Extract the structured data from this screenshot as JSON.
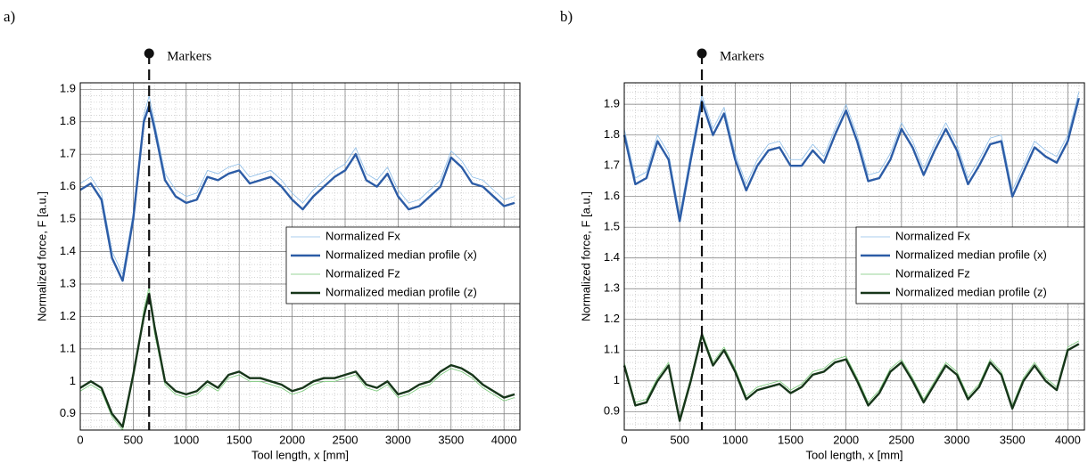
{
  "chart_data": [
    {
      "type": "line",
      "panel_label": "a)",
      "x_label": "Tool length, x [mm]",
      "y_label": "Normalized force, F [a.u.]",
      "marker": {
        "x": 650,
        "label": "Markers"
      },
      "xlim": [
        0,
        4150
      ],
      "ylim": [
        0.85,
        1.92
      ],
      "xticks": [
        0,
        500,
        1000,
        1500,
        2000,
        2500,
        3000,
        3500,
        4000
      ],
      "yticks": [
        0.9,
        1,
        1.1,
        1.2,
        1.3,
        1.4,
        1.5,
        1.6,
        1.7,
        1.8,
        1.9
      ],
      "grid": true,
      "legend": "center right",
      "x": [
        0,
        100,
        200,
        300,
        400,
        500,
        600,
        650,
        700,
        800,
        900,
        1000,
        1100,
        1200,
        1300,
        1400,
        1500,
        1600,
        1700,
        1800,
        1900,
        2000,
        2100,
        2200,
        2300,
        2400,
        2500,
        2600,
        2700,
        2800,
        2900,
        3000,
        3100,
        3200,
        3300,
        3400,
        3500,
        3600,
        3700,
        3800,
        3900,
        4000,
        4100
      ],
      "series": [
        {
          "name": "Normalized Fx",
          "color": "#8cbde8",
          "values": [
            1.61,
            1.63,
            1.58,
            1.4,
            1.33,
            1.52,
            1.82,
            1.88,
            1.8,
            1.64,
            1.59,
            1.57,
            1.58,
            1.65,
            1.64,
            1.66,
            1.67,
            1.63,
            1.64,
            1.65,
            1.62,
            1.58,
            1.55,
            1.59,
            1.62,
            1.65,
            1.67,
            1.72,
            1.64,
            1.62,
            1.66,
            1.59,
            1.55,
            1.56,
            1.59,
            1.62,
            1.71,
            1.68,
            1.63,
            1.62,
            1.59,
            1.56,
            1.57
          ]
        },
        {
          "name": "Normalized median profile (x)",
          "color": "#2c5ca6",
          "values": [
            1.59,
            1.61,
            1.56,
            1.38,
            1.31,
            1.5,
            1.8,
            1.85,
            1.78,
            1.62,
            1.57,
            1.55,
            1.56,
            1.63,
            1.62,
            1.64,
            1.65,
            1.61,
            1.62,
            1.63,
            1.6,
            1.56,
            1.53,
            1.57,
            1.6,
            1.63,
            1.65,
            1.7,
            1.62,
            1.6,
            1.64,
            1.57,
            1.53,
            1.54,
            1.57,
            1.6,
            1.69,
            1.66,
            1.61,
            1.6,
            1.57,
            1.54,
            1.55
          ]
        },
        {
          "name": "Normalized Fz",
          "color": "#77c977",
          "values": [
            0.97,
            0.99,
            0.97,
            0.89,
            0.85,
            1.01,
            1.22,
            1.29,
            1.15,
            0.99,
            0.96,
            0.95,
            0.96,
            0.99,
            0.97,
            1.01,
            1.02,
            1.0,
            1.0,
            0.99,
            0.98,
            0.96,
            0.97,
            0.99,
            1.0,
            1.0,
            1.01,
            1.02,
            0.98,
            0.97,
            0.99,
            0.95,
            0.96,
            0.98,
            0.99,
            1.02,
            1.04,
            1.03,
            1.01,
            0.98,
            0.96,
            0.94,
            0.95
          ]
        },
        {
          "name": "Normalized median profile (z)",
          "color": "#17361a",
          "values": [
            0.98,
            1.0,
            0.98,
            0.9,
            0.86,
            1.02,
            1.2,
            1.27,
            1.17,
            1.0,
            0.97,
            0.96,
            0.97,
            1.0,
            0.98,
            1.02,
            1.03,
            1.01,
            1.01,
            1.0,
            0.99,
            0.97,
            0.98,
            1.0,
            1.01,
            1.01,
            1.02,
            1.03,
            0.99,
            0.98,
            1.0,
            0.96,
            0.97,
            0.99,
            1.0,
            1.03,
            1.05,
            1.04,
            1.02,
            0.99,
            0.97,
            0.95,
            0.96
          ]
        }
      ]
    },
    {
      "type": "line",
      "panel_label": "b)",
      "x_label": "Tool length, x [mm]",
      "y_label": "Normalized force, F [a.u.]",
      "marker": {
        "x": 700,
        "label": "Markers"
      },
      "xlim": [
        0,
        4150
      ],
      "ylim": [
        0.84,
        1.97
      ],
      "xticks": [
        0,
        500,
        1000,
        1500,
        2000,
        2500,
        3000,
        3500,
        4000
      ],
      "yticks": [
        0.9,
        1,
        1.1,
        1.2,
        1.3,
        1.4,
        1.5,
        1.6,
        1.7,
        1.8,
        1.9
      ],
      "grid": true,
      "legend": "center right",
      "x": [
        0,
        100,
        200,
        300,
        400,
        500,
        600,
        700,
        800,
        900,
        1000,
        1100,
        1200,
        1300,
        1400,
        1500,
        1600,
        1700,
        1800,
        1900,
        2000,
        2100,
        2200,
        2300,
        2400,
        2500,
        2600,
        2700,
        2800,
        2900,
        3000,
        3100,
        3200,
        3300,
        3400,
        3500,
        3600,
        3700,
        3800,
        3900,
        4000,
        4100
      ],
      "series": [
        {
          "name": "Normalized Fx",
          "color": "#8cbde8",
          "values": [
            1.82,
            1.66,
            1.68,
            1.8,
            1.74,
            1.54,
            1.74,
            1.93,
            1.82,
            1.89,
            1.74,
            1.64,
            1.72,
            1.77,
            1.78,
            1.72,
            1.72,
            1.77,
            1.73,
            1.82,
            1.9,
            1.8,
            1.67,
            1.68,
            1.74,
            1.84,
            1.78,
            1.69,
            1.77,
            1.84,
            1.77,
            1.66,
            1.72,
            1.79,
            1.8,
            1.62,
            1.7,
            1.78,
            1.75,
            1.73,
            1.8,
            1.94
          ]
        },
        {
          "name": "Normalized median profile (x)",
          "color": "#2c5ca6",
          "values": [
            1.8,
            1.64,
            1.66,
            1.78,
            1.72,
            1.52,
            1.72,
            1.91,
            1.8,
            1.87,
            1.72,
            1.62,
            1.7,
            1.75,
            1.76,
            1.7,
            1.7,
            1.75,
            1.71,
            1.8,
            1.88,
            1.78,
            1.65,
            1.66,
            1.72,
            1.82,
            1.76,
            1.67,
            1.75,
            1.82,
            1.75,
            1.64,
            1.7,
            1.77,
            1.78,
            1.6,
            1.68,
            1.76,
            1.73,
            1.71,
            1.78,
            1.92
          ]
        },
        {
          "name": "Normalized Fz",
          "color": "#77c977",
          "values": [
            1.06,
            0.93,
            0.94,
            1.01,
            1.06,
            0.88,
            1.01,
            1.16,
            1.06,
            1.11,
            1.04,
            0.95,
            0.98,
            0.99,
            1.0,
            0.97,
            0.99,
            1.03,
            1.04,
            1.07,
            1.08,
            1.01,
            0.93,
            0.97,
            1.04,
            1.07,
            1.01,
            0.94,
            1.0,
            1.06,
            1.03,
            0.95,
            0.99,
            1.07,
            1.03,
            0.92,
            1.01,
            1.06,
            1.01,
            0.98,
            1.11,
            1.13
          ]
        },
        {
          "name": "Normalized median profile (z)",
          "color": "#17361a",
          "values": [
            1.05,
            0.92,
            0.93,
            1.0,
            1.05,
            0.87,
            1.0,
            1.15,
            1.05,
            1.1,
            1.03,
            0.94,
            0.97,
            0.98,
            0.99,
            0.96,
            0.98,
            1.02,
            1.03,
            1.06,
            1.07,
            1.0,
            0.92,
            0.96,
            1.03,
            1.06,
            1.0,
            0.93,
            0.99,
            1.05,
            1.02,
            0.94,
            0.98,
            1.06,
            1.02,
            0.91,
            1.0,
            1.05,
            1.0,
            0.97,
            1.1,
            1.12
          ]
        }
      ]
    }
  ]
}
